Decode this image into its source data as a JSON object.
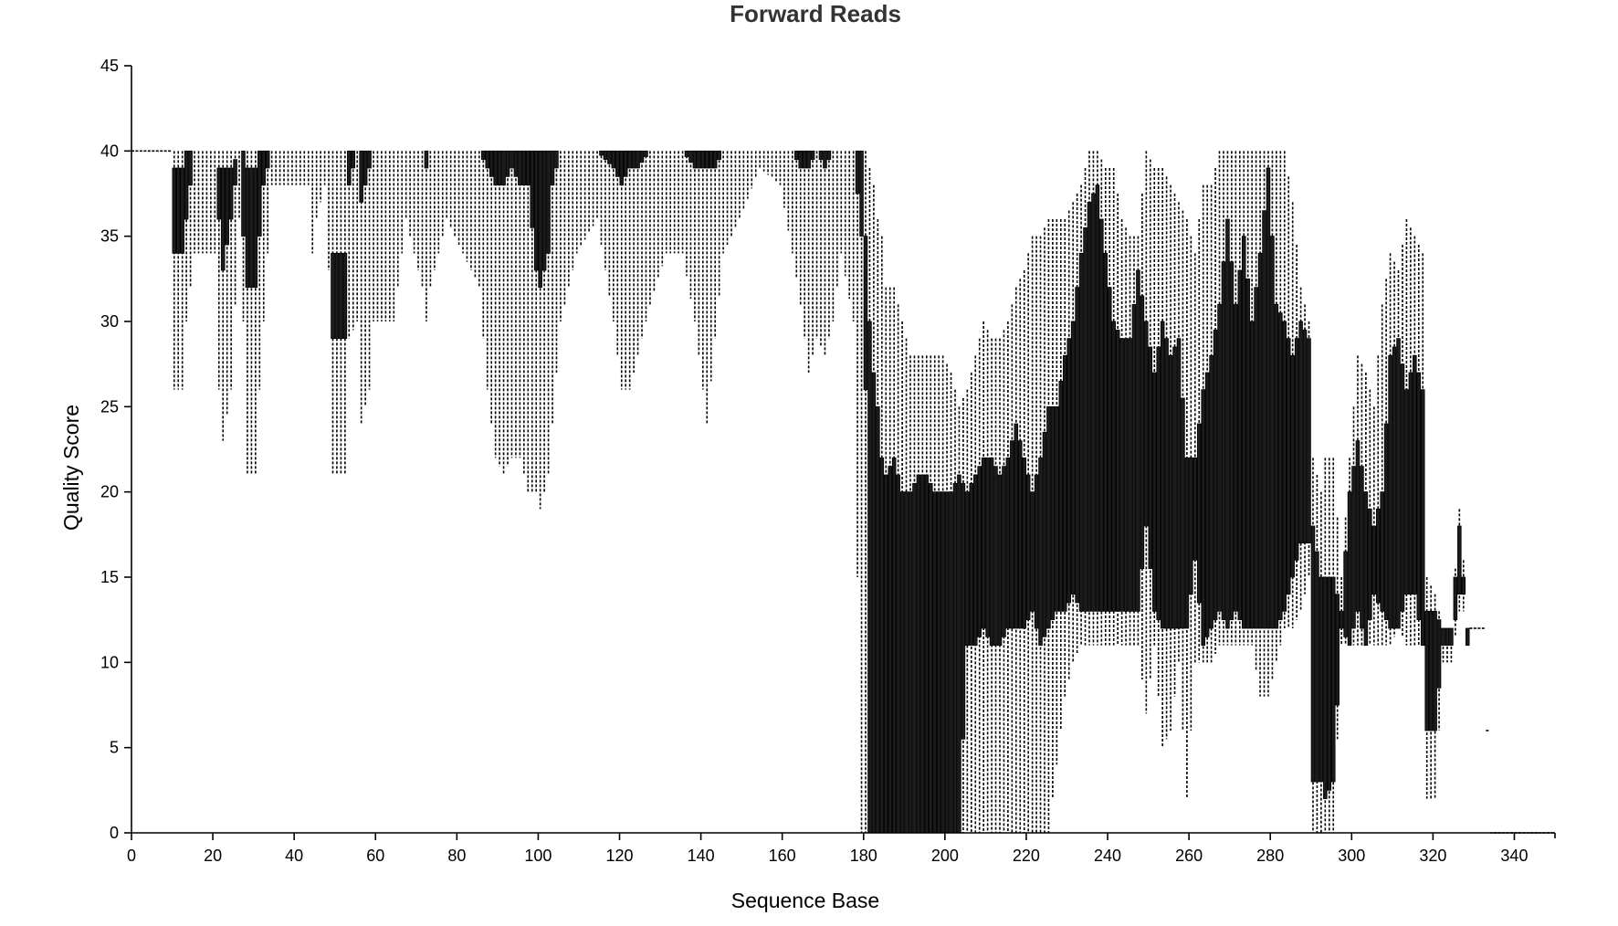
{
  "colors": {
    "box": "#1c1c1c",
    "whisker": "#000000",
    "axis": "#000000",
    "title": "#333333"
  },
  "chart_data": {
    "type": "box",
    "title": "Forward Reads",
    "xlabel": "Sequence Base",
    "ylabel": "Quality Score",
    "xlim": [
      0,
      350
    ],
    "ylim": [
      0,
      45
    ],
    "xticks": [
      0,
      20,
      40,
      60,
      80,
      100,
      120,
      140,
      160,
      180,
      200,
      220,
      240,
      260,
      280,
      300,
      320,
      340
    ],
    "yticks": [
      0,
      5,
      10,
      15,
      20,
      25,
      30,
      35,
      40,
      45
    ],
    "grid": false,
    "legend": "none",
    "knots": [
      [
        1,
        40,
        40,
        40,
        40
      ],
      [
        10,
        40,
        40,
        40,
        40
      ],
      [
        11,
        26,
        34,
        39,
        40
      ],
      [
        13,
        26,
        34,
        39,
        40
      ],
      [
        14,
        30,
        36,
        40,
        40
      ],
      [
        16,
        34,
        40,
        40,
        40
      ],
      [
        21,
        34,
        40,
        40,
        40
      ],
      [
        22,
        26,
        36,
        39,
        40
      ],
      [
        23,
        23,
        33,
        39,
        40
      ],
      [
        25,
        26,
        36,
        39,
        40
      ],
      [
        27,
        36,
        40,
        40,
        40
      ],
      [
        28,
        30,
        35,
        40,
        40
      ],
      [
        29,
        21,
        32,
        39,
        40
      ],
      [
        31,
        21,
        32,
        39,
        40
      ],
      [
        32,
        26,
        35,
        40,
        40
      ],
      [
        33,
        30,
        38,
        40,
        40
      ],
      [
        35,
        38,
        40,
        40,
        40
      ],
      [
        44,
        38,
        40,
        40,
        40
      ],
      [
        45,
        34,
        40,
        40,
        40
      ],
      [
        46,
        36,
        40,
        40,
        40
      ],
      [
        48,
        38,
        40,
        40,
        40
      ],
      [
        49,
        33,
        40,
        40,
        40
      ],
      [
        50,
        21,
        29,
        34,
        40
      ],
      [
        53,
        21,
        29,
        34,
        40
      ],
      [
        54,
        29,
        38,
        40,
        40
      ],
      [
        56,
        30,
        40,
        40,
        40
      ],
      [
        57,
        24,
        37,
        40,
        40
      ],
      [
        59,
        26,
        39,
        40,
        40
      ],
      [
        60,
        30,
        40,
        40,
        40
      ],
      [
        62,
        30,
        40,
        40,
        40
      ],
      [
        65,
        30,
        40,
        40,
        40
      ],
      [
        68,
        36,
        40,
        40,
        40
      ],
      [
        72,
        32,
        40,
        40,
        40
      ],
      [
        73,
        30,
        39,
        40,
        40
      ],
      [
        74,
        32,
        40,
        40,
        40
      ],
      [
        78,
        36,
        40,
        40,
        40
      ],
      [
        82,
        34,
        40,
        40,
        40
      ],
      [
        86,
        32,
        40,
        40,
        40
      ],
      [
        88,
        26,
        39,
        40,
        40
      ],
      [
        90,
        22,
        38,
        40,
        40
      ],
      [
        92,
        21,
        38,
        40,
        40
      ],
      [
        94,
        22,
        39,
        40,
        40
      ],
      [
        96,
        22,
        38,
        40,
        40
      ],
      [
        98,
        20,
        38,
        40,
        40
      ],
      [
        100,
        20,
        33,
        40,
        40
      ],
      [
        101,
        19,
        32,
        40,
        40
      ],
      [
        103,
        21,
        34,
        40,
        40
      ],
      [
        104,
        24,
        38,
        40,
        40
      ],
      [
        106,
        30,
        40,
        40,
        40
      ],
      [
        110,
        34,
        40,
        40,
        40
      ],
      [
        115,
        36,
        40,
        40,
        40
      ],
      [
        119,
        30,
        39,
        40,
        40
      ],
      [
        121,
        26,
        38,
        40,
        40
      ],
      [
        123,
        26,
        39,
        40,
        40
      ],
      [
        125,
        28,
        39,
        40,
        40
      ],
      [
        128,
        31,
        40,
        40,
        40
      ],
      [
        132,
        34,
        40,
        40,
        40
      ],
      [
        136,
        34,
        40,
        40,
        40
      ],
      [
        139,
        30,
        39,
        40,
        40
      ],
      [
        142,
        24,
        39,
        40,
        40
      ],
      [
        144,
        29,
        39,
        40,
        40
      ],
      [
        146,
        34,
        40,
        40,
        40
      ],
      [
        150,
        36,
        40,
        40,
        40
      ],
      [
        155,
        39,
        40,
        40,
        40
      ],
      [
        160,
        38,
        40,
        40,
        40
      ],
      [
        163,
        34,
        40,
        40,
        40
      ],
      [
        165,
        31,
        39,
        40,
        40
      ],
      [
        167,
        27,
        39,
        40,
        40
      ],
      [
        169,
        29,
        40,
        40,
        40
      ],
      [
        171,
        28,
        39,
        40,
        40
      ],
      [
        173,
        30,
        40,
        40,
        40
      ],
      [
        175,
        34,
        40,
        40,
        40
      ],
      [
        178,
        30,
        40,
        40,
        40
      ],
      [
        180,
        0,
        35,
        40,
        40
      ],
      [
        181,
        0,
        26,
        35,
        40
      ],
      [
        182,
        0,
        0,
        30,
        39
      ],
      [
        183,
        0,
        0,
        27,
        38
      ],
      [
        184,
        0,
        0,
        25,
        36
      ],
      [
        185,
        0,
        0,
        22,
        35
      ],
      [
        186,
        0,
        0,
        21,
        32
      ],
      [
        188,
        0,
        0,
        22,
        32
      ],
      [
        190,
        0,
        0,
        20,
        30
      ],
      [
        192,
        0,
        0,
        20,
        28
      ],
      [
        194,
        0,
        0,
        21,
        28
      ],
      [
        196,
        0,
        0,
        21,
        28
      ],
      [
        198,
        0,
        0,
        20,
        28
      ],
      [
        200,
        0,
        0,
        20,
        28
      ],
      [
        202,
        0,
        0,
        20,
        27
      ],
      [
        204,
        0,
        0,
        21,
        25
      ],
      [
        206,
        0,
        11,
        20,
        26
      ],
      [
        208,
        0,
        11,
        21,
        28
      ],
      [
        210,
        0,
        12,
        22,
        30
      ],
      [
        212,
        0,
        11,
        22,
        29
      ],
      [
        214,
        0,
        11,
        21,
        29
      ],
      [
        216,
        0,
        12,
        22,
        30
      ],
      [
        218,
        0,
        12,
        24,
        32
      ],
      [
        220,
        0,
        12,
        22,
        33
      ],
      [
        222,
        0,
        13,
        20,
        35
      ],
      [
        224,
        0,
        11,
        22,
        35
      ],
      [
        226,
        0,
        12,
        25,
        36
      ],
      [
        228,
        4,
        13,
        25,
        36
      ],
      [
        230,
        8,
        13,
        28,
        36
      ],
      [
        232,
        10,
        14,
        30,
        37
      ],
      [
        234,
        11,
        13,
        34,
        38
      ],
      [
        236,
        11,
        13,
        37,
        40
      ],
      [
        238,
        11,
        13,
        38,
        40
      ],
      [
        240,
        11,
        13,
        34,
        39
      ],
      [
        242,
        11,
        13,
        30,
        39
      ],
      [
        244,
        11,
        13,
        29,
        36
      ],
      [
        246,
        11,
        13,
        29,
        35
      ],
      [
        248,
        11,
        13,
        33,
        35
      ],
      [
        250,
        7,
        18,
        30,
        40
      ],
      [
        252,
        11,
        13,
        27,
        39
      ],
      [
        254,
        5,
        12,
        30,
        39
      ],
      [
        256,
        6,
        12,
        28,
        38
      ],
      [
        258,
        10,
        12,
        29,
        37
      ],
      [
        260,
        2,
        12,
        22,
        36
      ],
      [
        262,
        10,
        16,
        22,
        34
      ],
      [
        264,
        10,
        11,
        26,
        38
      ],
      [
        266,
        10,
        12,
        28,
        38
      ],
      [
        268,
        11,
        13,
        31,
        40
      ],
      [
        270,
        11,
        12,
        36,
        40
      ],
      [
        272,
        11,
        13,
        31,
        40
      ],
      [
        274,
        11,
        12,
        35,
        40
      ],
      [
        276,
        11,
        12,
        30,
        40
      ],
      [
        278,
        8,
        12,
        34,
        40
      ],
      [
        280,
        8,
        12,
        39,
        40
      ],
      [
        282,
        10,
        12,
        31,
        40
      ],
      [
        284,
        12,
        13,
        30,
        40
      ],
      [
        286,
        12,
        15,
        28,
        37
      ],
      [
        288,
        13,
        17,
        30,
        32
      ],
      [
        290,
        15,
        17,
        29,
        30
      ],
      [
        291,
        0,
        3,
        18,
        22
      ],
      [
        293,
        0,
        3,
        15,
        20
      ],
      [
        294,
        0,
        2,
        15,
        22
      ],
      [
        296,
        0,
        3,
        15,
        22
      ],
      [
        298,
        11,
        12,
        13,
        15
      ],
      [
        300,
        11,
        11,
        20,
        22
      ],
      [
        302,
        11,
        13,
        23,
        28
      ],
      [
        304,
        11,
        11,
        20,
        27
      ],
      [
        306,
        11,
        14,
        18,
        25
      ],
      [
        308,
        11,
        13,
        20,
        31
      ],
      [
        310,
        11,
        12,
        28,
        34
      ],
      [
        312,
        12,
        12,
        29,
        33
      ],
      [
        314,
        11,
        14,
        26,
        36
      ],
      [
        316,
        11,
        14,
        28,
        35
      ],
      [
        318,
        11,
        11,
        26,
        34
      ],
      [
        319,
        2,
        6,
        13,
        15
      ],
      [
        321,
        2,
        6,
        13,
        14
      ],
      [
        323,
        10,
        11,
        12,
        12
      ],
      [
        325,
        10,
        11,
        12,
        12
      ],
      [
        327,
        13,
        14,
        18,
        19
      ],
      [
        328,
        13,
        14,
        15,
        16
      ],
      [
        329,
        11,
        11,
        12,
        12
      ],
      [
        330,
        12,
        12,
        12,
        12
      ],
      [
        333,
        12,
        12,
        12,
        12
      ],
      [
        335,
        0,
        0,
        0,
        0
      ],
      [
        350,
        0,
        0,
        0,
        0
      ]
    ]
  }
}
